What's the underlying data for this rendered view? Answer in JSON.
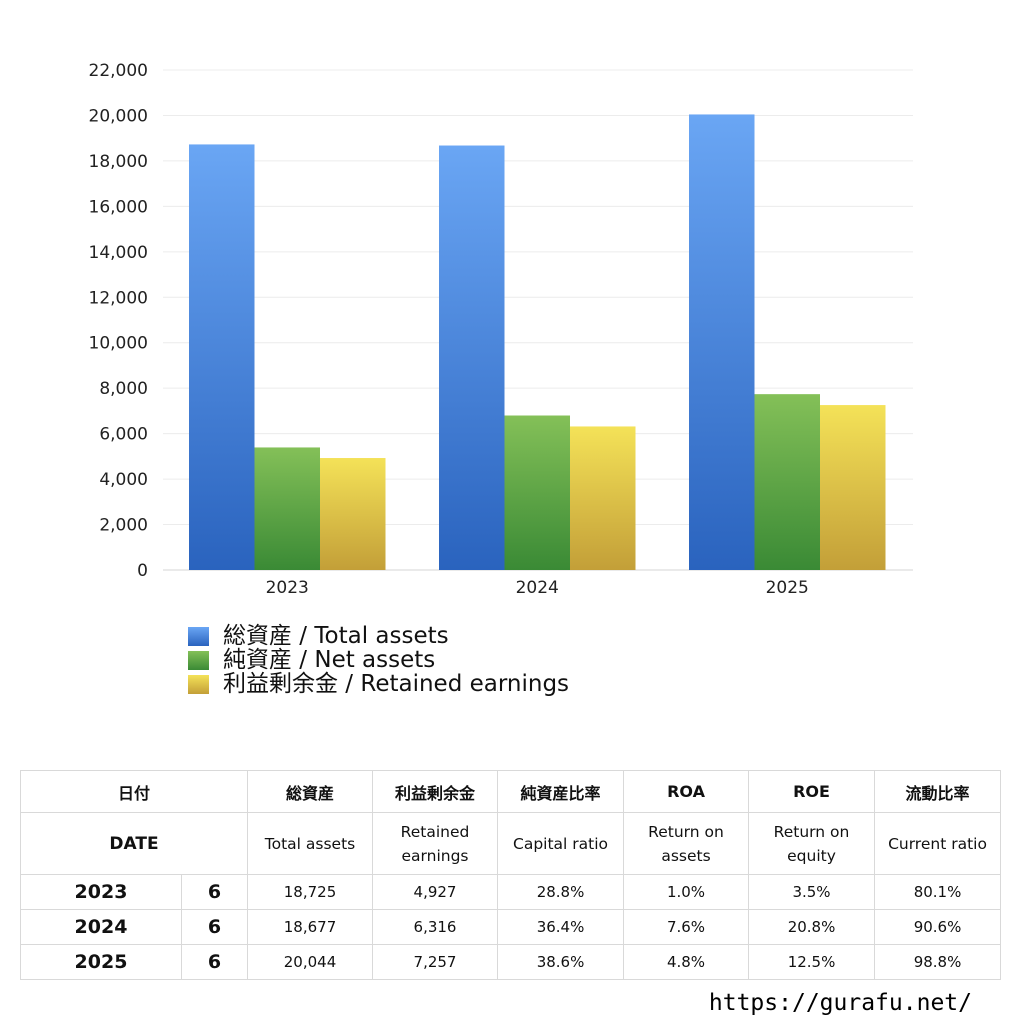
{
  "chart_data": {
    "type": "bar",
    "categories": [
      "2023",
      "2024",
      "2025"
    ],
    "series": [
      {
        "name": "総資産 / Total assets",
        "values": [
          18725,
          18677,
          20044
        ]
      },
      {
        "name": "純資産 / Net assets",
        "values": [
          5392,
          6798,
          7737
        ]
      },
      {
        "name": "利益剰余金 / Retained earnings",
        "values": [
          4927,
          6316,
          7257
        ]
      }
    ],
    "ylim": [
      0,
      22000
    ],
    "yticks": [
      "0",
      "2,000",
      "4,000",
      "6,000",
      "8,000",
      "10,000",
      "12,000",
      "14,000",
      "16,000",
      "18,000",
      "20,000",
      "22,000"
    ],
    "grid": true,
    "legend": "bottom",
    "colors": {
      "total": [
        "#6aa6f4",
        "#2a63be"
      ],
      "net": [
        "#84c058",
        "#3a8a35"
      ],
      "retained": [
        "#f4e258",
        "#c39f38"
      ]
    }
  },
  "table": {
    "headers_jp": [
      "日付",
      "総資産",
      "利益剰余金",
      "純資産比率",
      "ROA",
      "ROE",
      "流動比率"
    ],
    "headers_en": [
      "DATE",
      "Total assets",
      "Retained earnings",
      "Capital ratio",
      "Return on assets",
      "Return on equity",
      "Current ratio"
    ],
    "rows": [
      {
        "year": "2023",
        "month": "6",
        "total_assets": "18,725",
        "retained": "4,927",
        "capital_ratio": "28.8%",
        "roa": "1.0%",
        "roe": "3.5%",
        "current_ratio": "80.1%"
      },
      {
        "year": "2024",
        "month": "6",
        "total_assets": "18,677",
        "retained": "6,316",
        "capital_ratio": "36.4%",
        "roa": "7.6%",
        "roe": "20.8%",
        "current_ratio": "90.6%"
      },
      {
        "year": "2025",
        "month": "6",
        "total_assets": "20,044",
        "retained": "7,257",
        "capital_ratio": "38.6%",
        "roa": "4.8%",
        "roe": "12.5%",
        "current_ratio": "98.8%"
      }
    ]
  },
  "footer": {
    "url": "https://gurafu.net/"
  }
}
